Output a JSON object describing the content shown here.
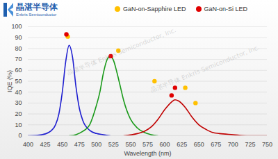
{
  "chart_data": {
    "type": "line",
    "x_label": "Wavelength (nm)",
    "y_label": "IQE (%)",
    "logo": [
      "晶湛半导体",
      "Enkris Semiconductor"
    ],
    "watermark": "晶湛半导体 Enkris Semiconductor, Inc.",
    "xlim": [
      400,
      750
    ],
    "xticks": [
      400,
      425,
      450,
      475,
      500,
      525,
      550,
      575,
      600,
      625,
      650,
      675,
      700,
      725,
      750
    ],
    "ylim": [
      0,
      100
    ],
    "yticks": [
      0,
      10,
      20,
      30,
      40,
      50,
      60,
      70,
      80,
      90,
      100
    ],
    "grid": "y",
    "legend": "top",
    "series": [
      {
        "type": "line",
        "color": "#1f1fd0",
        "line_style": "solid",
        "x": [
          400,
          420,
          430,
          440,
          445,
          450,
          455,
          460,
          465,
          470,
          475,
          480,
          490,
          500,
          510,
          520
        ],
        "values": [
          0,
          1,
          3,
          10,
          20,
          40,
          68,
          83,
          72,
          45,
          25,
          14,
          5,
          2,
          1,
          0
        ]
      },
      {
        "type": "line",
        "color": "#1a9a1a",
        "line_style": "solid",
        "x": [
          460,
          470,
          480,
          490,
          500,
          505,
          510,
          515,
          520,
          525,
          530,
          535,
          540,
          550,
          560,
          570,
          580,
          590
        ],
        "values": [
          0,
          1,
          4,
          10,
          28,
          40,
          57,
          69,
          73,
          69,
          58,
          45,
          32,
          15,
          7,
          3,
          1,
          0
        ]
      },
      {
        "type": "line",
        "color": "#c00000",
        "line_style": "solid",
        "x": [
          540,
          560,
          570,
          580,
          590,
          600,
          610,
          615,
          620,
          630,
          640,
          650,
          660,
          670,
          680,
          700,
          720,
          750
        ],
        "values": [
          0,
          2,
          4,
          8,
          15,
          24,
          31,
          33,
          32,
          26,
          17,
          10,
          6,
          3,
          2,
          1,
          0,
          0
        ]
      },
      {
        "type": "scatter",
        "name": "GaN-on-Sapphire LED",
        "color": "#ffc000",
        "marker": "circle",
        "x": [
          458,
          532,
          585,
          630,
          645
        ],
        "values": [
          91,
          78,
          50,
          44,
          30
        ]
      },
      {
        "type": "scatter",
        "name": "GaN-on-Si LED",
        "color": "#e00000",
        "marker": "circle",
        "x": [
          456,
          521,
          610,
          615
        ],
        "values": [
          93,
          73,
          37,
          44
        ]
      }
    ]
  }
}
